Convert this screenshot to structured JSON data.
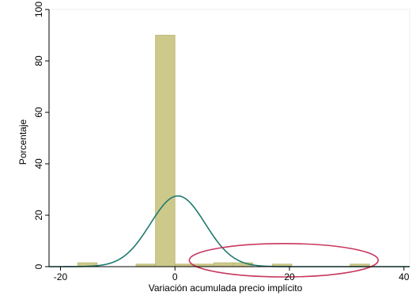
{
  "chart_data": {
    "type": "histogram",
    "xlabel": "Variación acumulada precio implícito",
    "ylabel": "Porcentaje",
    "xlim": [
      -22,
      41
    ],
    "ylim": [
      0,
      100
    ],
    "x_ticks": [
      -20,
      0,
      20,
      40
    ],
    "y_ticks": [
      0,
      20,
      40,
      60,
      80,
      100
    ],
    "bin_width": 3.4,
    "bins": [
      {
        "start": -17.0,
        "end": -13.6,
        "value": 1.5
      },
      {
        "start": -6.8,
        "end": -3.4,
        "value": 1.0
      },
      {
        "start": -3.4,
        "end": 0.0,
        "value": 90.0
      },
      {
        "start": 0.0,
        "end": 3.4,
        "value": 1.0
      },
      {
        "start": 3.4,
        "end": 6.8,
        "value": 1.0
      },
      {
        "start": 6.8,
        "end": 10.2,
        "value": 1.5
      },
      {
        "start": 10.2,
        "end": 13.6,
        "value": 1.5
      },
      {
        "start": 17.0,
        "end": 20.4,
        "value": 1.0
      },
      {
        "start": 30.6,
        "end": 34.0,
        "value": 1.0
      }
    ],
    "density_curve": {
      "type": "normal",
      "mean": 0.5,
      "sd": 4.8,
      "peak": 27.5
    },
    "annotation": {
      "shape": "ellipse",
      "cx": 19,
      "cy": 2.5,
      "rx": 16.5,
      "ry": 6.5
    },
    "grid": false,
    "colors": {
      "bar_fill": "#cdc98a",
      "bar_stroke": "#b8b36e",
      "curve": "#1f7a6e",
      "annotation": "#c8385f",
      "axis": "#000000"
    }
  }
}
